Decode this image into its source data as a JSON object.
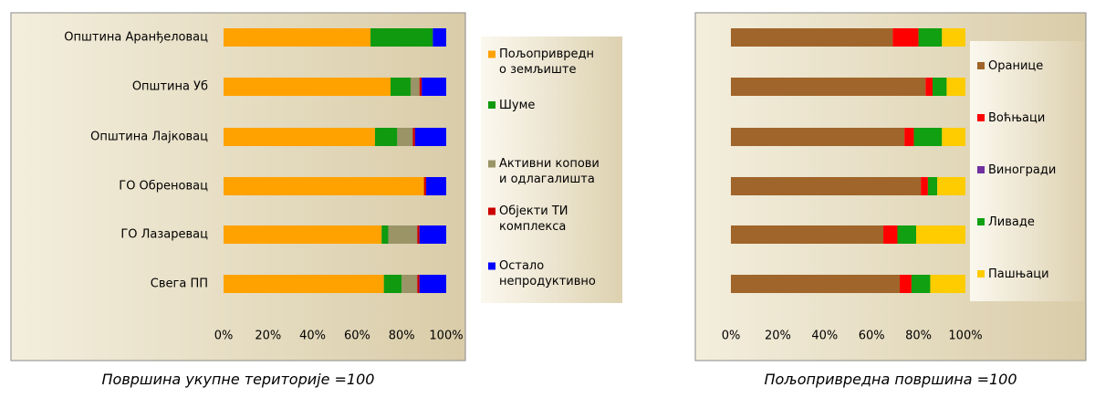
{
  "chart_data": [
    {
      "type": "bar",
      "orientation": "horizontal",
      "stacked": true,
      "legend": "right",
      "caption": "Површина укупне територије =100",
      "categories": [
        "Општина Аранђеловац",
        "Општина Уб",
        "Општина Лајковац",
        "ГО Обреновац",
        "ГО Лазаревац",
        "Свега ПП"
      ],
      "series": [
        {
          "name": "Пољопривредн\nо земљиште",
          "color": "#ffa200",
          "values": [
            66,
            75,
            68,
            90,
            71,
            72
          ]
        },
        {
          "name": "Шуме",
          "color": "#0f9a0f",
          "values": [
            28,
            9,
            10,
            0,
            3,
            8
          ]
        },
        {
          "name": "Активни копови\nи одлагалишта",
          "color": "#9a9467",
          "values": [
            0,
            4,
            7,
            0,
            13,
            7
          ]
        },
        {
          "name": "Објекти ТИ\nкомплекса",
          "color": "#cc0000",
          "values": [
            0,
            1,
            1,
            1,
            1,
            1
          ]
        },
        {
          "name": "Остало\nнепродуктивно",
          "color": "#0000ff",
          "values": [
            6,
            11,
            14,
            9,
            12,
            12
          ]
        }
      ],
      "xlim": [
        0,
        100
      ],
      "xticks": [
        {
          "value": 0,
          "label": "0%"
        },
        {
          "value": 20,
          "label": "20%"
        },
        {
          "value": 40,
          "label": "40%"
        },
        {
          "value": 60,
          "label": "60%"
        },
        {
          "value": 80,
          "label": "80%"
        },
        {
          "value": 100,
          "label": "100%"
        }
      ]
    },
    {
      "type": "bar",
      "orientation": "horizontal",
      "stacked": true,
      "legend": "right",
      "caption": "Пољопривредна површина =100",
      "series": [
        {
          "name": "Оранице",
          "color": "#a0652a",
          "values": [
            69,
            83,
            74,
            81,
            65,
            72
          ]
        },
        {
          "name": "Воћњаци",
          "color": "#ff0000",
          "values": [
            11,
            3,
            4,
            3,
            6,
            5
          ]
        },
        {
          "name": "Виногради",
          "color": "#7030a0",
          "values": [
            0,
            0,
            0,
            0,
            0,
            0
          ]
        },
        {
          "name": "Ливаде",
          "color": "#11a011",
          "values": [
            10,
            6,
            12,
            4,
            8,
            8
          ]
        },
        {
          "name": "Пашњаци",
          "color": "#ffcc00",
          "values": [
            10,
            8,
            10,
            12,
            21,
            15
          ]
        }
      ],
      "xlim": [
        0,
        100
      ],
      "xticks": [
        {
          "value": 0,
          "label": "0%"
        },
        {
          "value": 20,
          "label": "20%"
        },
        {
          "value": 40,
          "label": "40%"
        },
        {
          "value": 60,
          "label": "60%"
        },
        {
          "value": 80,
          "label": "80%"
        },
        {
          "value": 100,
          "label": "100%"
        }
      ]
    }
  ]
}
